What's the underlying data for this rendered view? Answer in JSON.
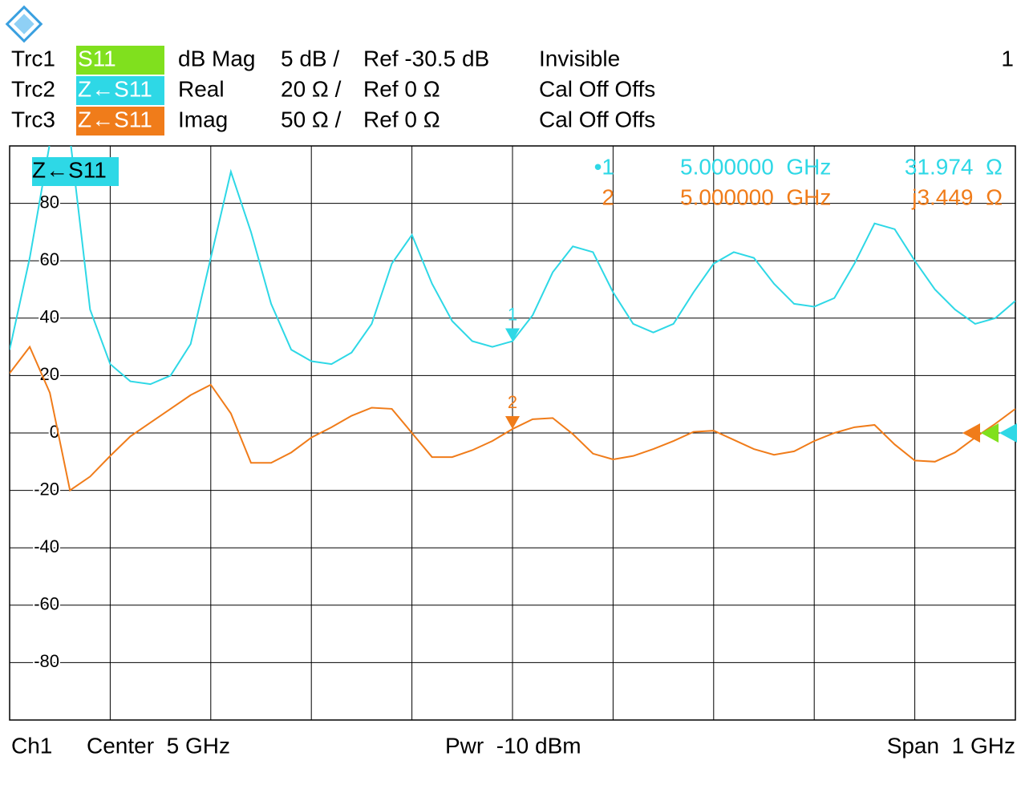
{
  "header": {
    "rows": [
      {
        "trace": "Trc1",
        "param": "S11",
        "color": "#80e01e",
        "format": "dB Mag",
        "scale": "5 dB /",
        "ref": "Ref -30.5 dB",
        "status": "Invisible"
      },
      {
        "trace": "Trc2",
        "param": "Z←S11",
        "color": "#2ed8e6",
        "format": "Real",
        "scale": "20 Ω /",
        "ref": "Ref 0 Ω",
        "status": "Cal Off Offs"
      },
      {
        "trace": "Trc3",
        "param": "Z←S11",
        "color": "#f07c1a",
        "format": "Imag",
        "scale": "50 Ω /",
        "ref": "Ref 0 Ω",
        "status": "Cal Off Offs"
      }
    ],
    "channel": "1"
  },
  "chart_data": {
    "type": "line",
    "label": "Z←S11",
    "label_color": "#2ed8e6",
    "x": [
      4.5,
      4.52,
      4.54,
      4.56,
      4.58,
      4.6,
      4.62,
      4.64,
      4.66,
      4.68,
      4.7,
      4.72,
      4.74,
      4.76,
      4.78,
      4.8,
      4.82,
      4.84,
      4.86,
      4.88,
      4.9,
      4.92,
      4.94,
      4.96,
      4.98,
      5.0,
      5.02,
      5.04,
      5.06,
      5.08,
      5.1,
      5.12,
      5.14,
      5.16,
      5.18,
      5.2,
      5.22,
      5.24,
      5.26,
      5.28,
      5.3,
      5.32,
      5.34,
      5.36,
      5.38,
      5.4,
      5.42,
      5.44,
      5.46,
      5.48,
      5.5
    ],
    "xlim": [
      4.5,
      5.5
    ],
    "xgrid_divisions": 10,
    "ylim": [
      -100,
      100
    ],
    "yticks": [
      -80,
      -60,
      -40,
      -20,
      0,
      20,
      40,
      60,
      80
    ],
    "y2lim": [
      -250,
      250
    ],
    "grid": true,
    "series": [
      {
        "color": "#2ed8e6",
        "values": [
          29,
          61,
          101,
          103,
          43,
          24,
          18,
          17,
          20,
          31,
          61,
          91,
          70,
          45,
          29,
          25,
          24,
          28,
          38,
          59,
          69,
          52,
          39,
          32,
          30,
          31.974,
          41,
          56,
          65,
          63,
          49,
          38,
          35,
          38,
          49,
          59,
          63,
          61,
          52,
          45,
          44,
          47,
          59,
          73,
          71,
          60,
          50,
          43,
          38,
          40,
          46
        ]
      },
      {
        "color": "#f07c1a",
        "axis": "y2",
        "values": [
          52,
          75,
          35,
          -50,
          -38,
          -20,
          -3,
          9,
          21,
          33,
          42,
          17,
          -26,
          -26,
          -17,
          -4,
          5,
          15,
          22,
          21,
          0,
          -21,
          -21,
          -15,
          -7,
          3.449,
          12,
          13,
          -1,
          -18,
          -23,
          -20,
          -14,
          -7,
          1,
          2,
          -6,
          -14,
          -19,
          -16,
          -7,
          0,
          5,
          7,
          -10,
          -24,
          -25,
          -17,
          -4,
          8,
          21
        ]
      }
    ],
    "markers": [
      {
        "label": "1",
        "series": 0,
        "index": 25,
        "readout_label": "•1",
        "x_label": "5.000000  GHz",
        "value_label": "31.974  Ω"
      },
      {
        "label": "2",
        "series": 1,
        "index": 25,
        "readout_label": "2",
        "x_label": "5.000000  GHz",
        "value_label": "j3.449  Ω"
      }
    ]
  },
  "footer": {
    "channel": "Ch1",
    "center": "Center  5 GHz",
    "power": "Pwr  -10 dBm",
    "span": "Span  1 GHz"
  }
}
